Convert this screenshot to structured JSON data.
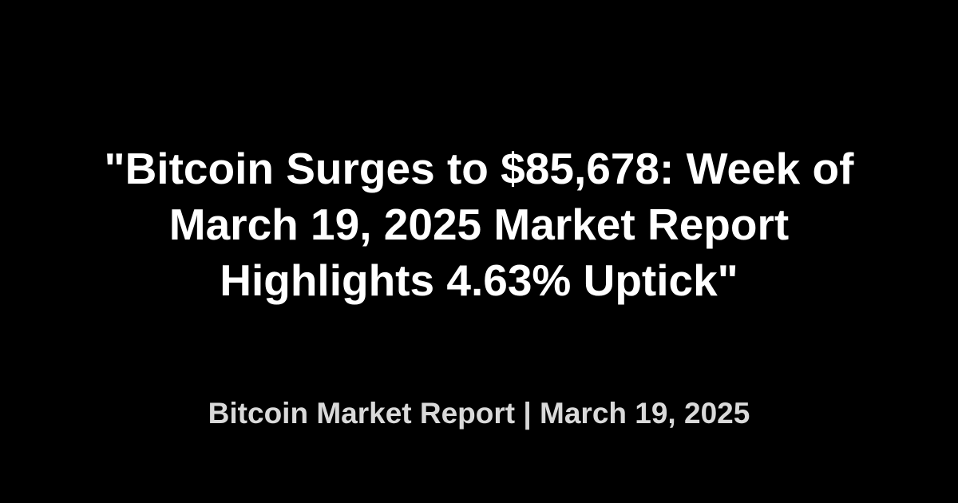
{
  "headline": "\"Bitcoin Surges to $85,678: Week of March 19, 2025 Market Report Highlights 4.63% Uptick\"",
  "subline": "Bitcoin Market Report | March 19, 2025",
  "colors": {
    "background": "#000000",
    "headline": "#ffffff",
    "subline": "#d9d9d9"
  }
}
